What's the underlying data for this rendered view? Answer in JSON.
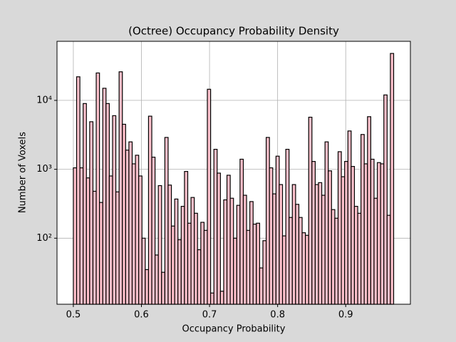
{
  "chart_data": {
    "type": "histogram",
    "title": "(Octree) Occupancy Probability Density",
    "x_label": "Occupancy Probability",
    "y_label": "Number of Voxels",
    "yscale": "log",
    "grid": true,
    "color": "#ffc0cb",
    "edgecolor": "#000000",
    "xlim": [
      0.476,
      0.995
    ],
    "ylim": [
      11,
      72000
    ],
    "xticks": [
      0.5,
      0.6,
      0.7,
      0.8,
      0.9
    ],
    "yticks": [
      {
        "value": 100,
        "label": "10²"
      },
      {
        "value": 1000,
        "label": "10³"
      },
      {
        "value": 10000,
        "label": "10⁴"
      }
    ],
    "bins": [
      0.5,
      0.5048,
      0.5096,
      0.5144,
      0.5192,
      0.524,
      0.5288,
      0.5336,
      0.5384,
      0.5432,
      0.548,
      0.5528,
      0.5576,
      0.5624,
      0.5672,
      0.572,
      0.5768,
      0.5816,
      0.5864,
      0.5912,
      0.596,
      0.6008,
      0.6056,
      0.6104,
      0.6152,
      0.62,
      0.6248,
      0.6296,
      0.6344,
      0.6392,
      0.644,
      0.6488,
      0.6536,
      0.6584,
      0.6632,
      0.668,
      0.6728,
      0.6776,
      0.6824,
      0.6872,
      0.692,
      0.6968,
      0.7016,
      0.7064,
      0.7112,
      0.716,
      0.7208,
      0.7256,
      0.7304,
      0.7352,
      0.74,
      0.7448,
      0.7496,
      0.7544,
      0.7592,
      0.764,
      0.7688,
      0.7736,
      0.7784,
      0.7832,
      0.788,
      0.7928,
      0.7976,
      0.8024,
      0.8072,
      0.812,
      0.8168,
      0.8216,
      0.8264,
      0.8312,
      0.836,
      0.8408,
      0.8456,
      0.8504,
      0.8552,
      0.86,
      0.8648,
      0.8696,
      0.8744,
      0.8792,
      0.884,
      0.8888,
      0.8936,
      0.8984,
      0.9032,
      0.908,
      0.9128,
      0.9176,
      0.9224,
      0.9272,
      0.932,
      0.9368,
      0.9416,
      0.9464,
      0.9512,
      0.956,
      0.9608,
      0.9656,
      0.9704
    ],
    "values": [
      1050,
      22000,
      1050,
      9000,
      750,
      4900,
      480,
      25000,
      330,
      15000,
      9000,
      800,
      6000,
      470,
      26000,
      4500,
      1900,
      2500,
      1200,
      1600,
      800,
      100,
      35,
      5900,
      1500,
      57,
      580,
      32,
      2900,
      590,
      150,
      370,
      95,
      290,
      930,
      165,
      390,
      230,
      68,
      170,
      130,
      14500,
      16,
      1950,
      880,
      17,
      360,
      820,
      380,
      100,
      300,
      1400,
      420,
      130,
      340,
      160,
      165,
      37,
      92,
      2900,
      1050,
      440,
      1550,
      600,
      108,
      1950,
      200,
      600,
      310,
      200,
      120,
      110,
      5700,
      1300,
      600,
      640,
      420,
      2500,
      950,
      260,
      195,
      1800,
      780,
      1300,
      3600,
      1100,
      290,
      230,
      3200,
      1200,
      5800,
      1400,
      380,
      1250,
      1200,
      12000,
      215,
      48000
    ]
  }
}
